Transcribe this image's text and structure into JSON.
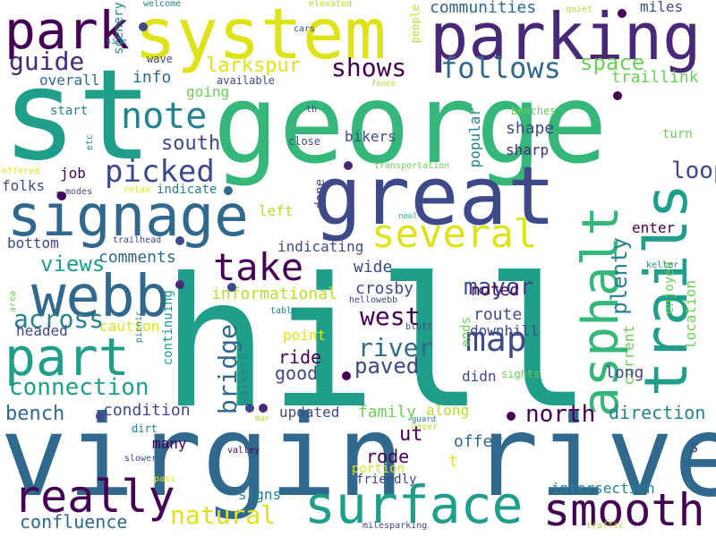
{
  "cloud": {
    "background": "#ffffff",
    "palette": {
      "a": "#440154",
      "b": "#482878",
      "c": "#3e4989",
      "d": "#31688e",
      "e": "#26828e",
      "f": "#1f9e89",
      "g": "#35b779",
      "h": "#6ece58",
      "i": "#b5de2b",
      "j": "#dde318"
    },
    "words": [
      {
        "text": "st",
        "c": "f"
      },
      {
        "text": "george",
        "c": "g"
      },
      {
        "text": "hill",
        "c": "f"
      },
      {
        "text": "virgin river",
        "c": "d"
      },
      {
        "text": "system",
        "c": "j"
      },
      {
        "text": "parking",
        "c": "b"
      },
      {
        "text": "park",
        "c": "a"
      },
      {
        "text": "great",
        "c": "c"
      },
      {
        "text": "signage",
        "c": "d"
      },
      {
        "text": "trails",
        "c": "f"
      },
      {
        "text": "asphalt",
        "c": "g"
      },
      {
        "text": "surface",
        "c": "f"
      },
      {
        "text": "smooth",
        "c": "a"
      },
      {
        "text": "really",
        "c": "a"
      },
      {
        "text": "webb",
        "c": "d"
      },
      {
        "text": "part",
        "c": "f"
      },
      {
        "text": "several",
        "c": "j"
      },
      {
        "text": "take",
        "c": "a"
      },
      {
        "text": "note",
        "c": "e"
      },
      {
        "text": "map",
        "c": "c"
      },
      {
        "text": "picked",
        "c": "c"
      },
      {
        "text": "follows",
        "c": "d"
      },
      {
        "text": "shows",
        "c": "a"
      },
      {
        "text": "guide",
        "c": "b"
      },
      {
        "text": "larkspur",
        "c": "j"
      },
      {
        "text": "space",
        "c": "h"
      },
      {
        "text": "connection",
        "c": "f"
      },
      {
        "text": "across",
        "c": "e"
      },
      {
        "text": "natural",
        "c": "j"
      },
      {
        "text": "confluence",
        "c": "d"
      },
      {
        "text": "bridge",
        "c": "d"
      },
      {
        "text": "river",
        "c": "d"
      },
      {
        "text": "mayor",
        "c": "c"
      },
      {
        "text": "west",
        "c": "a"
      },
      {
        "text": "paved",
        "c": "c"
      },
      {
        "text": "north",
        "c": "a"
      },
      {
        "text": "loop",
        "c": "c"
      },
      {
        "text": "south",
        "c": "c"
      },
      {
        "text": "plenty",
        "c": "e"
      },
      {
        "text": "communities",
        "c": "d"
      },
      {
        "text": "miles",
        "c": "c"
      },
      {
        "text": "info",
        "c": "d"
      },
      {
        "text": "overall",
        "c": "d"
      },
      {
        "text": "scenery",
        "c": "e"
      },
      {
        "text": "wave",
        "c": "c"
      },
      {
        "text": "people",
        "c": "i"
      },
      {
        "text": "quiet",
        "c": "i"
      },
      {
        "text": "elevated",
        "c": "i"
      },
      {
        "text": "welcome",
        "c": "e"
      },
      {
        "text": "cars",
        "c": "c"
      },
      {
        "text": "side",
        "c": "e"
      },
      {
        "text": "going",
        "c": "h"
      },
      {
        "text": "available",
        "c": "c"
      },
      {
        "text": "fence",
        "c": "i"
      },
      {
        "text": "traillink",
        "c": "h"
      },
      {
        "text": "start",
        "c": "e"
      },
      {
        "text": "th",
        "c": "c"
      },
      {
        "text": "benches",
        "c": "h"
      },
      {
        "text": "turn",
        "c": "h"
      },
      {
        "text": "shape",
        "c": "c"
      },
      {
        "text": "sharp",
        "c": "b"
      },
      {
        "text": "bikers",
        "c": "c"
      },
      {
        "text": "close",
        "c": "c"
      },
      {
        "text": "popular",
        "c": "e"
      },
      {
        "text": "etc",
        "c": "e"
      },
      {
        "text": "job",
        "c": "a"
      },
      {
        "text": "offered",
        "c": "j"
      },
      {
        "text": "transportation",
        "c": "h"
      },
      {
        "text": "folks",
        "c": "c"
      },
      {
        "text": "modes",
        "c": "c"
      },
      {
        "text": "relax",
        "c": "j"
      },
      {
        "text": "indicate",
        "c": "e"
      },
      {
        "text": "done",
        "c": "c"
      },
      {
        "text": "left",
        "c": "i"
      },
      {
        "text": "noel",
        "c": "g"
      },
      {
        "text": "enter",
        "c": "a"
      },
      {
        "text": "bottom",
        "c": "c"
      },
      {
        "text": "trailhead",
        "c": "c"
      },
      {
        "text": "indicating",
        "c": "c"
      },
      {
        "text": "views",
        "c": "f"
      },
      {
        "text": "comments",
        "c": "d"
      },
      {
        "text": "wide",
        "c": "c"
      },
      {
        "text": "crosby",
        "c": "c"
      },
      {
        "text": "noted",
        "c": "a"
      },
      {
        "text": "informational",
        "c": "i"
      },
      {
        "text": "continuing",
        "c": "f"
      },
      {
        "text": "hellowebb",
        "c": "c"
      },
      {
        "text": "route",
        "c": "c"
      },
      {
        "text": "area",
        "c": "h"
      },
      {
        "text": "headed",
        "c": "c"
      },
      {
        "text": "caution",
        "c": "j"
      },
      {
        "text": "table",
        "c": "e"
      },
      {
        "text": "bluff",
        "c": "c"
      },
      {
        "text": "downhill",
        "c": "c"
      },
      {
        "text": "ends",
        "c": "h"
      },
      {
        "text": "current",
        "c": "h"
      },
      {
        "text": "location",
        "c": "h"
      },
      {
        "text": "enjoyed",
        "c": "h"
      },
      {
        "text": "keller",
        "c": "e"
      },
      {
        "text": "point",
        "c": "j"
      },
      {
        "text": "ride",
        "c": "a"
      },
      {
        "text": "picnic",
        "c": "e"
      },
      {
        "text": "walkers",
        "c": "e"
      },
      {
        "text": "good",
        "c": "c"
      },
      {
        "text": "didn",
        "c": "c"
      },
      {
        "text": "sights",
        "c": "h"
      },
      {
        "text": "long",
        "c": "c"
      },
      {
        "text": "bench",
        "c": "d"
      },
      {
        "text": "condition",
        "c": "c"
      },
      {
        "text": "updated",
        "c": "c"
      },
      {
        "text": "family",
        "c": "h"
      },
      {
        "text": "along",
        "c": "i"
      },
      {
        "text": "direction",
        "c": "e"
      },
      {
        "text": "mar",
        "c": "i"
      },
      {
        "text": "guard",
        "c": "e"
      },
      {
        "text": "ut",
        "c": "a"
      },
      {
        "text": "cover",
        "c": "i"
      },
      {
        "text": "offer",
        "c": "d"
      },
      {
        "text": "dirt",
        "c": "e"
      },
      {
        "text": "many",
        "c": "a"
      },
      {
        "text": "valley",
        "c": "a"
      },
      {
        "text": "rode",
        "c": "a"
      },
      {
        "text": "t",
        "c": "j"
      },
      {
        "text": "s",
        "c": "c"
      },
      {
        "text": "slower",
        "c": "c"
      },
      {
        "text": "portion",
        "c": "j"
      },
      {
        "text": "friendly",
        "c": "c"
      },
      {
        "text": "pass",
        "c": "j"
      },
      {
        "text": "intersection",
        "c": "e"
      },
      {
        "text": "signs",
        "c": "e"
      },
      {
        "text": "milesparking",
        "c": "c"
      },
      {
        "text": "traffic",
        "c": "i"
      }
    ],
    "dots": [
      "a",
      "a",
      "c",
      "c",
      "a",
      "a",
      "d",
      "c",
      "b",
      "c",
      "b",
      "a",
      "c",
      "b"
    ]
  }
}
